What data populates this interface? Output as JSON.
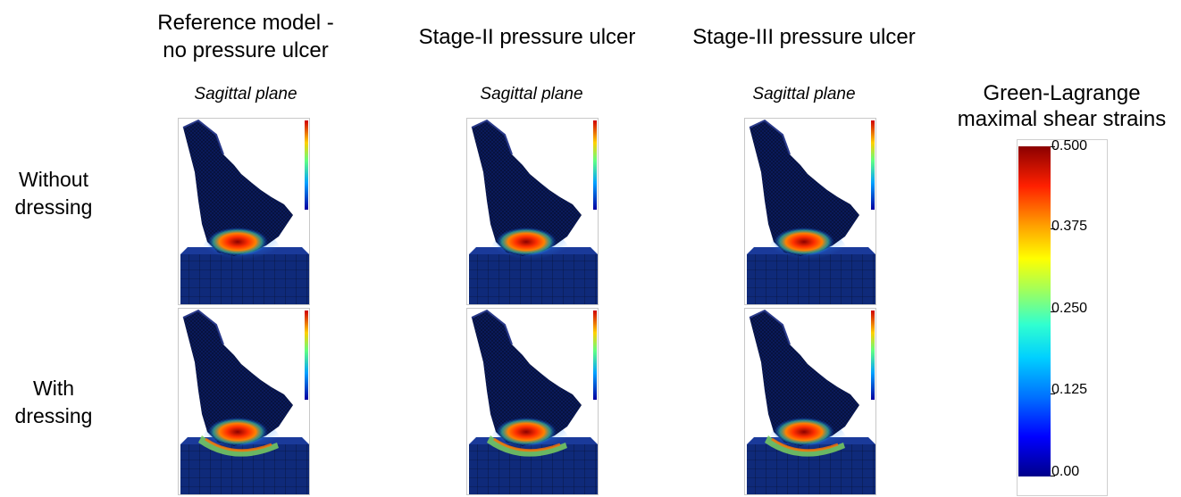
{
  "columns": [
    {
      "title_line1": "Reference model -",
      "title_line2": "no pressure ulcer",
      "plane": "Sagittal plane"
    },
    {
      "title_line1": "Stage-II pressure ulcer",
      "title_line2": "",
      "plane": "Sagittal plane"
    },
    {
      "title_line1": "Stage-III pressure ulcer",
      "title_line2": "",
      "plane": "Sagittal plane"
    }
  ],
  "rows": [
    {
      "line1": "Without",
      "line2": "dressing"
    },
    {
      "line1": "With",
      "line2": "dressing"
    }
  ],
  "legend": {
    "title_line1": "Green-Lagrange",
    "title_line2": "maximal shear strains",
    "ticks": [
      "0.500",
      "0.375",
      "0.250",
      "0.125",
      "0.00"
    ]
  },
  "colors": {
    "mesh_dark": "#0a1a5a",
    "support": "#0f2a7a",
    "hot": "#8b0000",
    "warm": "#ff8000"
  }
}
